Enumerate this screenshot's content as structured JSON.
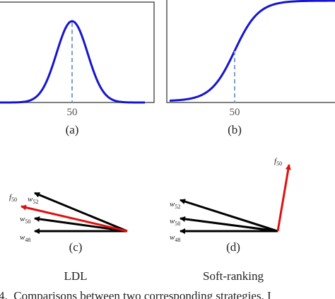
{
  "panels": [
    {
      "tick": "50",
      "caption": "(a)"
    },
    {
      "tick": "50",
      "caption": "(b)"
    }
  ],
  "vectors": [
    {
      "caption": "(c)",
      "method": "LDL",
      "labels": [
        {
          "symbol": "f",
          "sub": "50"
        },
        {
          "symbol": "w",
          "sub": "52"
        },
        {
          "symbol": "w",
          "sub": "50"
        },
        {
          "symbol": "w",
          "sub": "48"
        }
      ]
    },
    {
      "caption": "(d)",
      "method": "Soft-ranking",
      "labels": [
        {
          "symbol": "f",
          "sub": "50"
        },
        {
          "symbol": "w",
          "sub": "52"
        },
        {
          "symbol": "w",
          "sub": "50"
        },
        {
          "symbol": "w",
          "sub": "48"
        }
      ]
    }
  ],
  "caption": "4.  Comparisons between two corresponding strategies. I"
}
